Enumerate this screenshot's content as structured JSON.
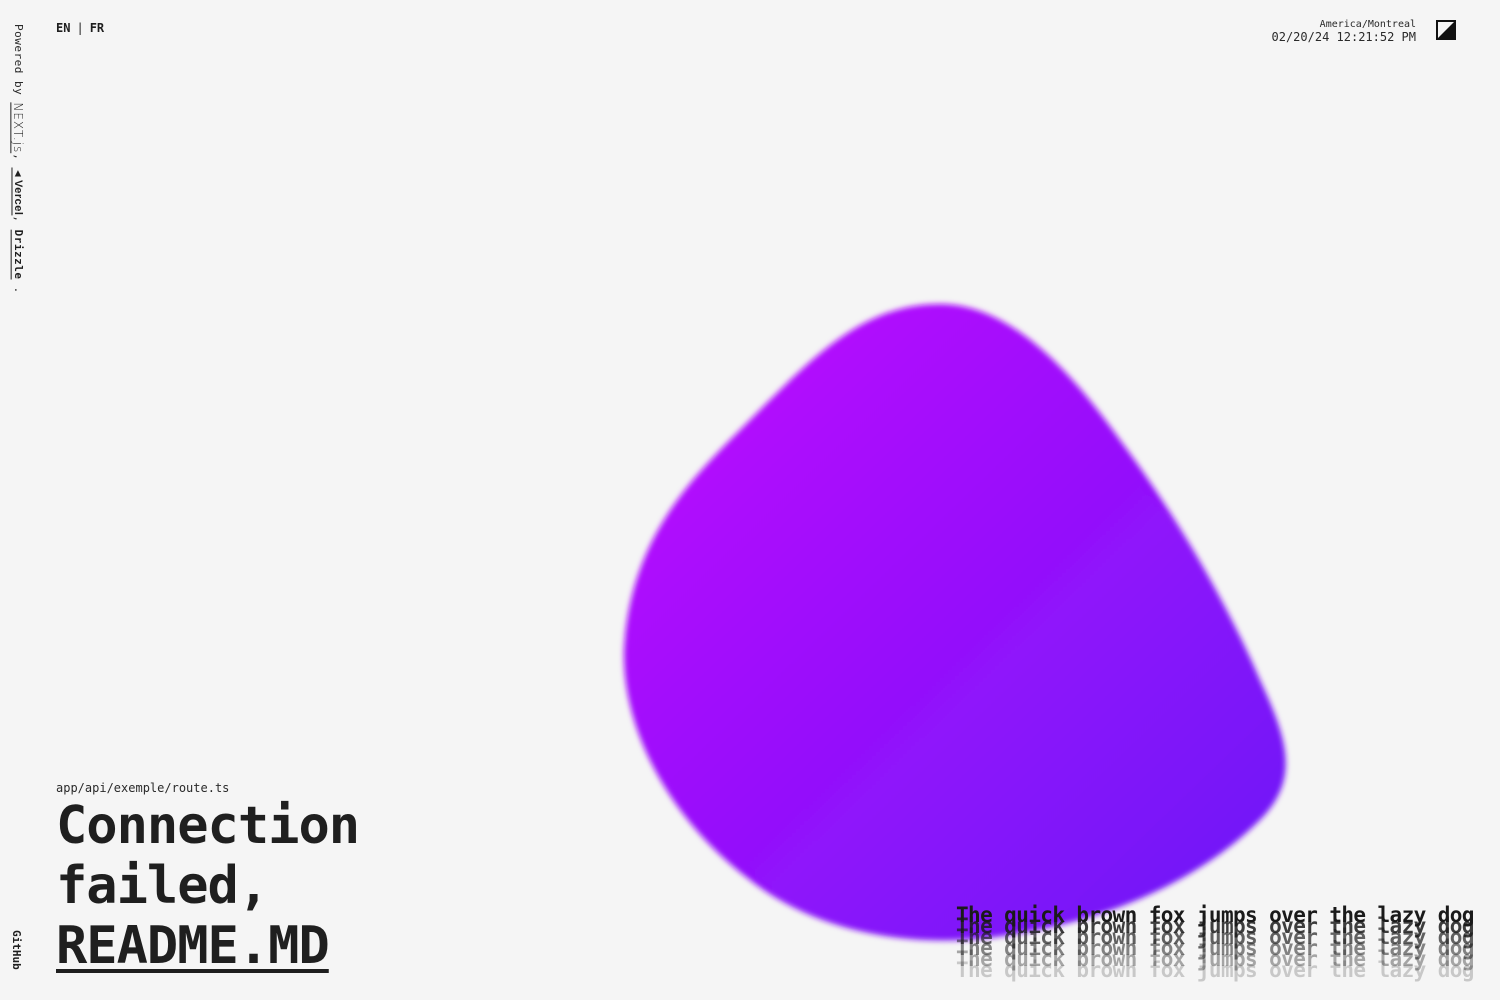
{
  "rail": {
    "powered_by": "Powered by",
    "next_label": "NEXT.js",
    "comma1": ",",
    "vercel_label": "▲Vercel",
    "comma2": ",",
    "drizzle_label": "Drizzle",
    "period": ".",
    "github_label": "GitHub"
  },
  "lang": {
    "en": "EN",
    "separator": "|",
    "fr": "FR"
  },
  "clock": {
    "timezone": "America/Montreal",
    "datetime": "02/20/24 12:21:52 PM"
  },
  "theme_toggle": {
    "icon": "contrast-half-icon"
  },
  "blob": {
    "gradient_start": "#c10cff",
    "gradient_end": "#6a16f7"
  },
  "content": {
    "route_path": "app/api/exemple/route.ts",
    "headline_line1": "Connection",
    "headline_line2": "failed,",
    "readme_link": "README.MD"
  },
  "quote": {
    "text": "The quick brown fox jumps over the lazy dog",
    "copies": 6
  }
}
